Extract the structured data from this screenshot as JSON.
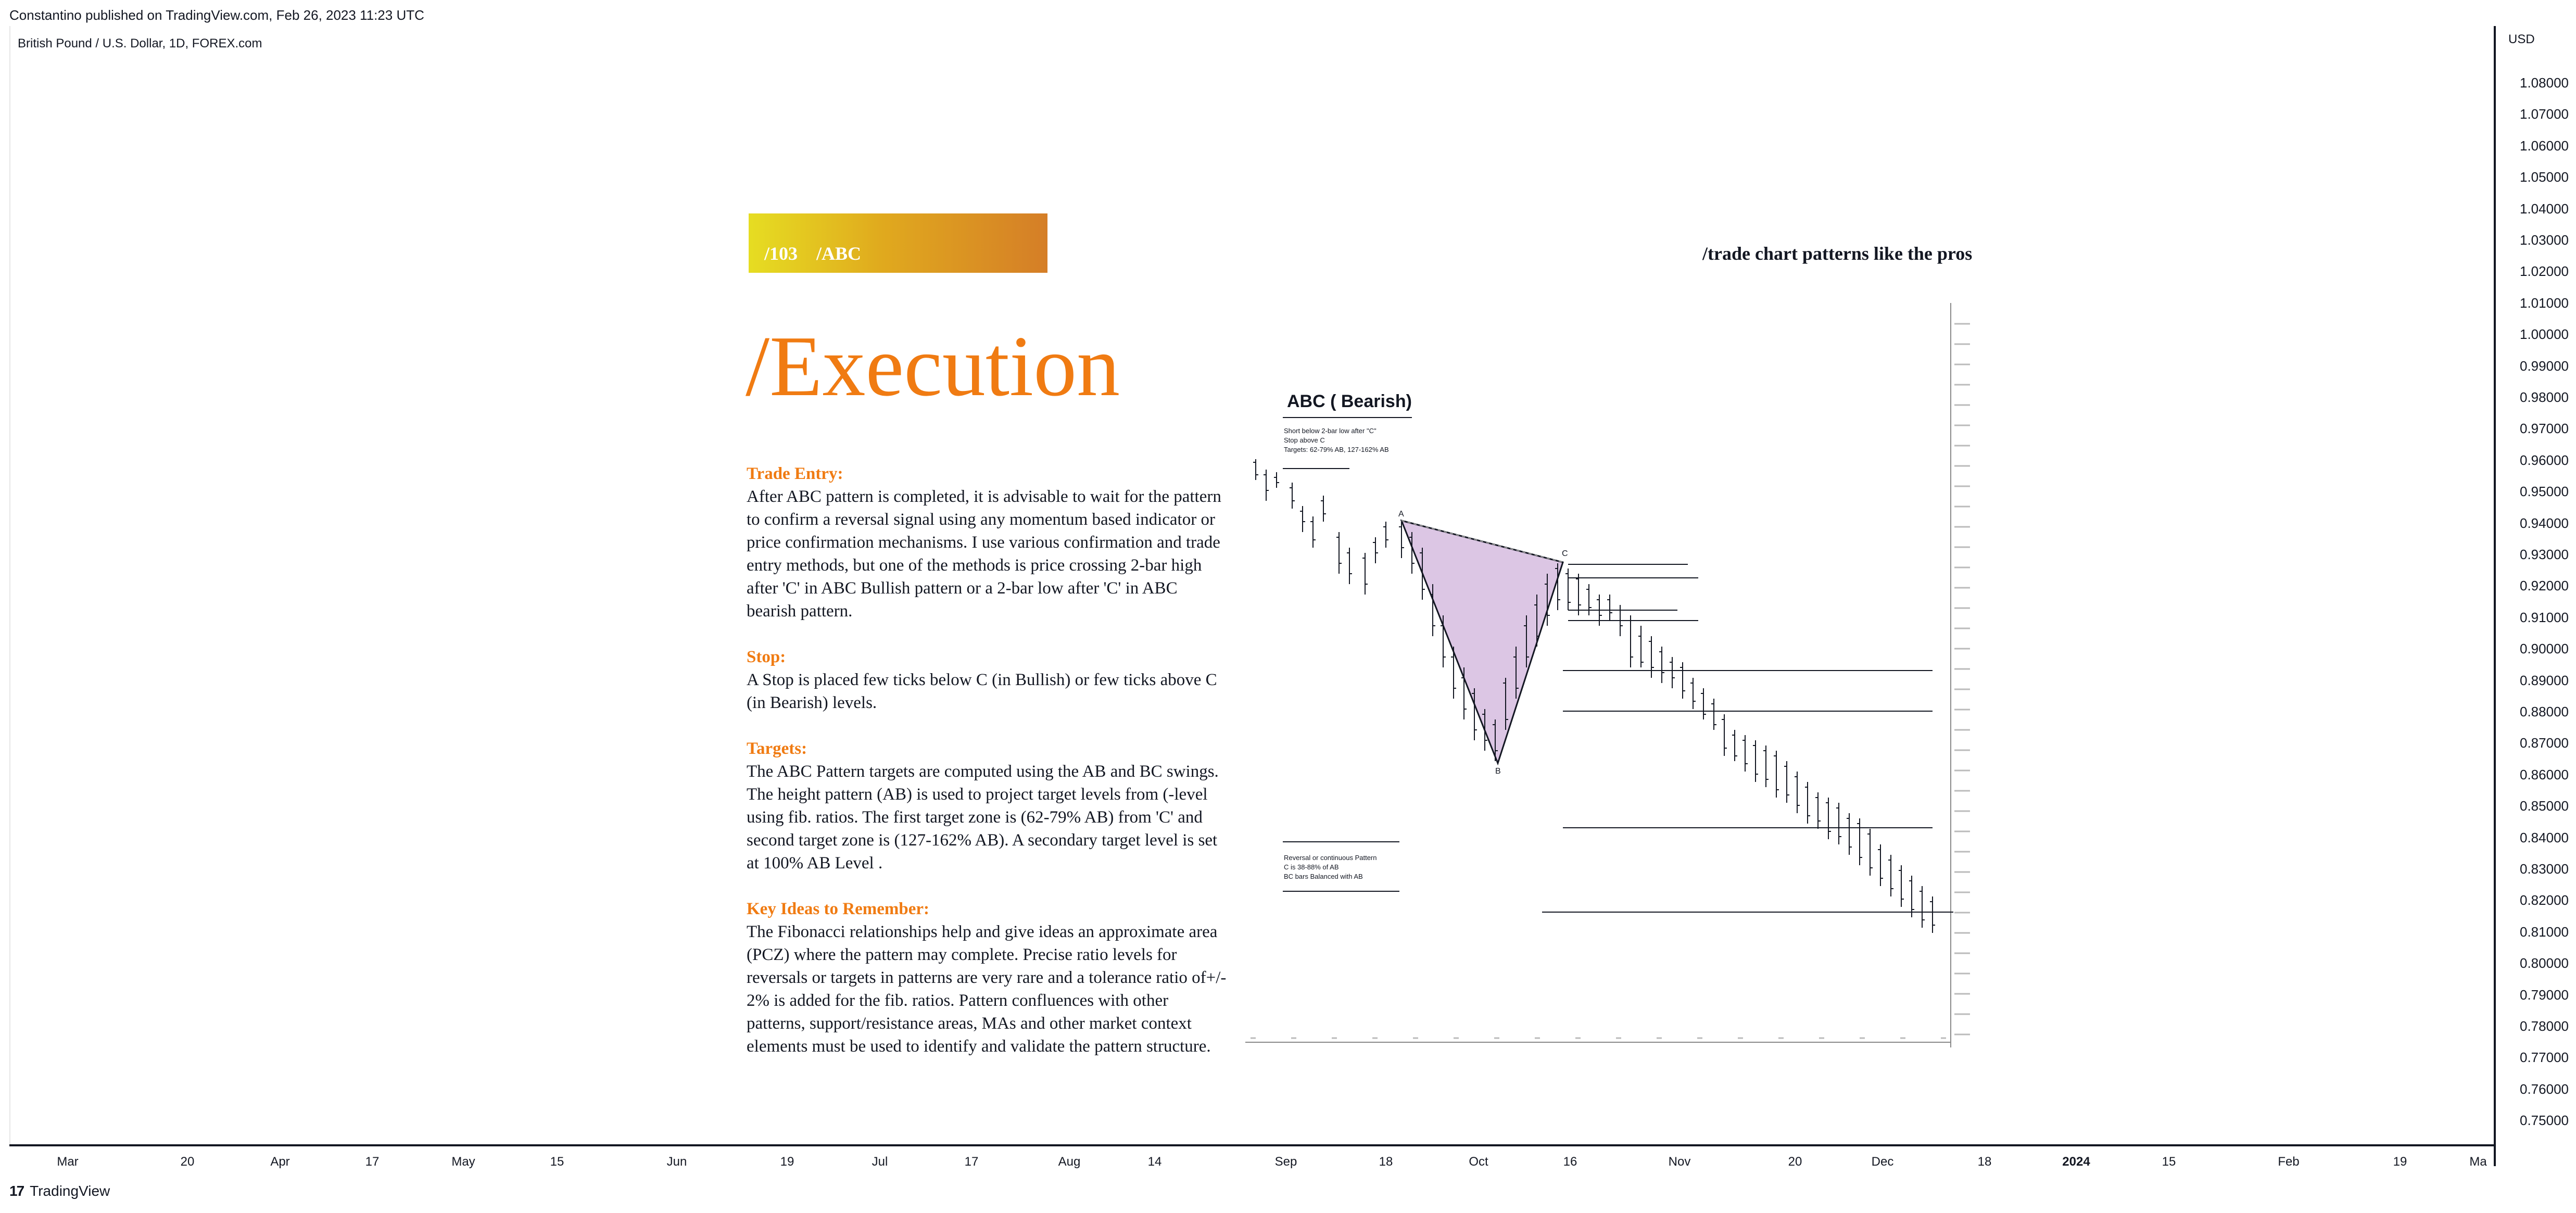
{
  "header": {
    "publish_line": "Constantino published on TradingView.com, Feb 26, 2023 11:23 UTC",
    "symbol_line": "British Pound / U.S. Dollar, 1D, FOREX.com"
  },
  "price_axis": {
    "currency": "USD",
    "ticks": [
      "1.08000",
      "1.07000",
      "1.06000",
      "1.05000",
      "1.04000",
      "1.03000",
      "1.02000",
      "1.01000",
      "1.00000",
      "0.99000",
      "0.98000",
      "0.97000",
      "0.96000",
      "0.95000",
      "0.94000",
      "0.93000",
      "0.92000",
      "0.91000",
      "0.90000",
      "0.89000",
      "0.88000",
      "0.87000",
      "0.86000",
      "0.85000",
      "0.84000",
      "0.83000",
      "0.82000",
      "0.81000",
      "0.80000",
      "0.79000",
      "0.78000",
      "0.77000",
      "0.76000",
      "0.75000"
    ]
  },
  "time_axis": {
    "ticks": [
      {
        "label": "Mar",
        "bold": false
      },
      {
        "label": "20",
        "bold": false
      },
      {
        "label": "Apr",
        "bold": false
      },
      {
        "label": "17",
        "bold": false
      },
      {
        "label": "May",
        "bold": false
      },
      {
        "label": "15",
        "bold": false
      },
      {
        "label": "Jun",
        "bold": false
      },
      {
        "label": "19",
        "bold": false
      },
      {
        "label": "Jul",
        "bold": false
      },
      {
        "label": "17",
        "bold": false
      },
      {
        "label": "Aug",
        "bold": false
      },
      {
        "label": "14",
        "bold": false
      },
      {
        "label": "Sep",
        "bold": false
      },
      {
        "label": "18",
        "bold": false
      },
      {
        "label": "Oct",
        "bold": false
      },
      {
        "label": "16",
        "bold": false
      },
      {
        "label": "Nov",
        "bold": false
      },
      {
        "label": "20",
        "bold": false
      },
      {
        "label": "Dec",
        "bold": false
      },
      {
        "label": "18",
        "bold": false
      },
      {
        "label": "2024",
        "bold": true
      },
      {
        "label": "15",
        "bold": false
      },
      {
        "label": "Feb",
        "bold": false
      },
      {
        "label": "19",
        "bold": false
      },
      {
        "label": "Ma",
        "bold": false
      }
    ]
  },
  "footer": {
    "brand": "TradingView",
    "logo_text": "17"
  },
  "banner": {
    "text": "/103    /ABC",
    "gradient": [
      "#e6dd22",
      "#d57e27"
    ]
  },
  "tagline": "/trade chart patterns like the pros",
  "title": "/Execution",
  "accent_color": "#f07b12",
  "sections": [
    {
      "heading": "Trade Entry:",
      "body": "After ABC pattern is completed, it is advisable to wait for the pattern to confirm a reversal signal using any momentum based indicator or price confirmation mechanisms. I use various confirmation and trade entry methods, but one of the methods is price crossing 2-bar high after 'C' in ABC Bullish pattern or a 2-bar low after 'C' in ABC bearish pattern."
    },
    {
      "heading": "Stop:",
      "body": "A Stop is placed few ticks below C (in Bullish) or few ticks above C (in Bearish) levels."
    },
    {
      "heading": "Targets:",
      "body": "The ABC Pattern targets are computed using the AB and BC swings. The height pattern (AB) is used to project target levels from (-level using fib. ratios. The first target zone is (62-79% AB) from 'C' and second target zone is (127-162% AB). A secondary target level is set at 100% AB Level ."
    },
    {
      "heading": "Key Ideas to Remember:",
      "body": "The Fibonacci relationships help and give ideas an approximate area (PCZ) where the pattern may complete. Precise ratio levels for reversals or targets in patterns are very rare and a tolerance ratio of+/- 2% is added for the fib. ratios. Pattern confluences with other patterns, support/resistance areas, MAs and other market context elements must be used to identify and validate the pattern structure."
    }
  ],
  "inset_chart": {
    "title": "ABC ( Bearish)",
    "rules": [
      "Short below 2-bar low after \"C\"",
      "Stop above C",
      "Targets: 62-79% AB, 127-162% AB"
    ],
    "notes": [
      "Reversal or continuous Pattern",
      "C is 38-88% of AB",
      "BC bars Balanced with AB"
    ],
    "points": {
      "A": "A",
      "B": "B",
      "C": "C"
    },
    "triangle_color": "#dcc6e4"
  }
}
